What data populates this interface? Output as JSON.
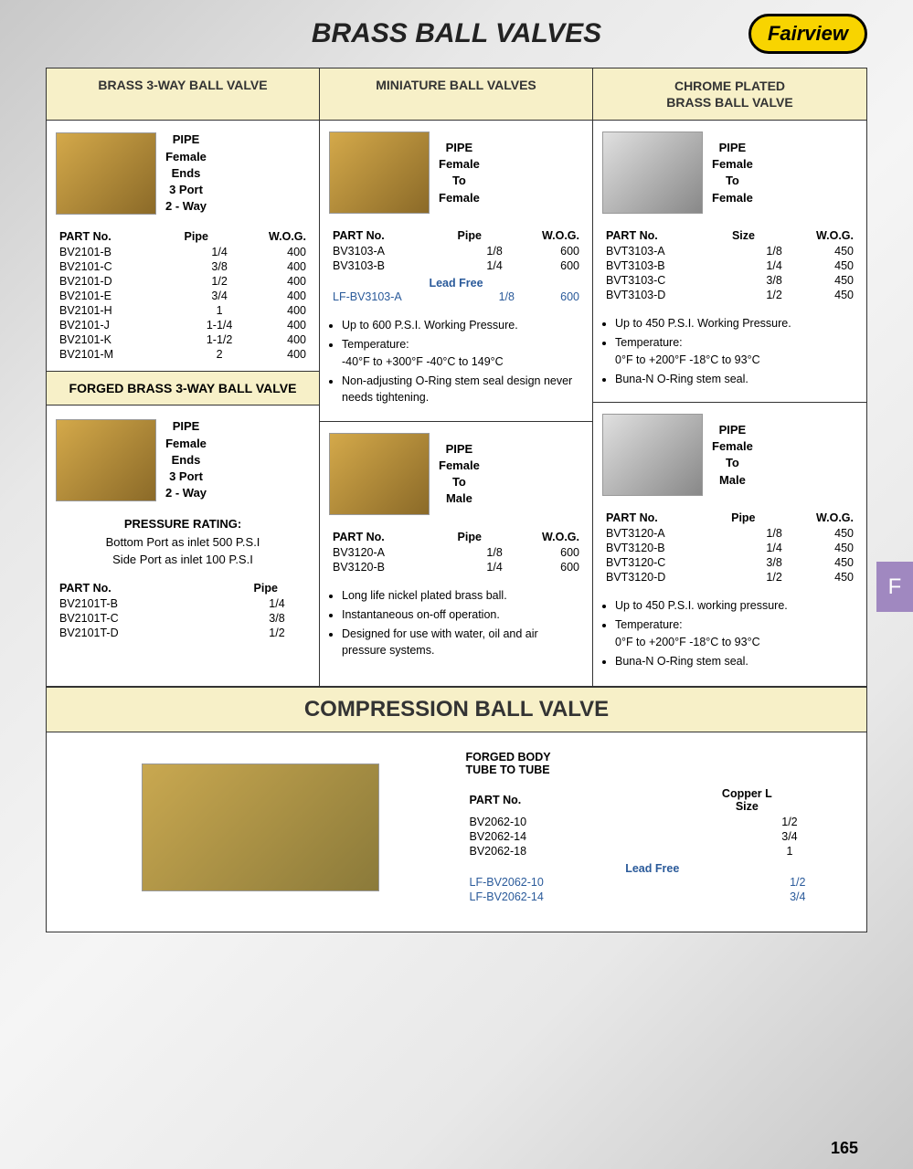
{
  "page": {
    "title": "BRASS BALL VALVES",
    "logo": "Fairview",
    "number": "165",
    "tab": "F"
  },
  "colors": {
    "header_bg": "#f7f0c8",
    "leadfree": "#2a5a9a",
    "logo_bg": "#f8d400",
    "tab_bg": "#a088c0"
  },
  "col1": {
    "header": "BRASS 3-WAY BALL VALVE",
    "desc": "PIPE\nFemale\nEnds\n3 Port\n2 - Way",
    "table": {
      "headers": [
        "PART No.",
        "Pipe",
        "W.O.G."
      ],
      "rows": [
        [
          "BV2101-B",
          "1/4",
          "400"
        ],
        [
          "BV2101-C",
          "3/8",
          "400"
        ],
        [
          "BV2101-D",
          "1/2",
          "400"
        ],
        [
          "BV2101-E",
          "3/4",
          "400"
        ],
        [
          "BV2101-H",
          "1",
          "400"
        ],
        [
          "BV2101-J",
          "1-1/4",
          "400"
        ],
        [
          "BV2101-K",
          "1-1/2",
          "400"
        ],
        [
          "BV2101-M",
          "2",
          "400"
        ]
      ]
    },
    "sub_header": "FORGED BRASS 3-WAY BALL VALVE",
    "desc2": "PIPE\nFemale\nEnds\n3 Port\n2 - Way",
    "pressure": {
      "label": "PRESSURE RATING:",
      "line1": "Bottom Port as inlet 500 P.S.I",
      "line2": "Side Port as inlet 100 P.S.I"
    },
    "table2": {
      "headers": [
        "PART No.",
        "Pipe"
      ],
      "rows": [
        [
          "BV2101T-B",
          "1/4"
        ],
        [
          "BV2101T-C",
          "3/8"
        ],
        [
          "BV2101T-D",
          "1/2"
        ]
      ]
    }
  },
  "col2": {
    "header": "MINIATURE BALL VALVES",
    "desc": "PIPE\nFemale\nTo\nFemale",
    "table": {
      "headers": [
        "PART No.",
        "Pipe",
        "W.O.G."
      ],
      "rows": [
        [
          "BV3103-A",
          "1/8",
          "600"
        ],
        [
          "BV3103-B",
          "1/4",
          "600"
        ]
      ],
      "leadfree_label": "Lead Free",
      "leadfree_rows": [
        [
          "LF-BV3103-A",
          "1/8",
          "600"
        ]
      ]
    },
    "bullets": [
      "Up to 600 P.S.I. Working Pressure.",
      "Temperature:",
      "-40°F to +300°F    -40°C to 149°C",
      "Non-adjusting O-Ring stem seal design never needs tightening."
    ],
    "desc2": "PIPE\nFemale\nTo\nMale",
    "table2": {
      "headers": [
        "PART No.",
        "Pipe",
        "W.O.G."
      ],
      "rows": [
        [
          "BV3120-A",
          "1/8",
          "600"
        ],
        [
          "BV3120-B",
          "1/4",
          "600"
        ]
      ]
    },
    "bullets2": [
      "Long life nickel plated brass ball.",
      "Instantaneous on-off operation.",
      "Designed for use with water, oil and air pressure systems."
    ]
  },
  "col3": {
    "header": "CHROME PLATED\nBRASS BALL VALVE",
    "desc": "PIPE\nFemale\nTo\nFemale",
    "table": {
      "headers": [
        "PART No.",
        "Size",
        "W.O.G."
      ],
      "rows": [
        [
          "BVT3103-A",
          "1/8",
          "450"
        ],
        [
          "BVT3103-B",
          "1/4",
          "450"
        ],
        [
          "BVT3103-C",
          "3/8",
          "450"
        ],
        [
          "BVT3103-D",
          "1/2",
          "450"
        ]
      ]
    },
    "bullets": [
      "Up to 450 P.S.I. Working Pressure.",
      "Temperature:",
      "0°F to +200°F    -18°C to 93°C",
      "Buna-N O-Ring stem seal."
    ],
    "desc2": "PIPE\nFemale\nTo\nMale",
    "table2": {
      "headers": [
        "PART No.",
        "Pipe",
        "W.O.G."
      ],
      "rows": [
        [
          "BVT3120-A",
          "1/8",
          "450"
        ],
        [
          "BVT3120-B",
          "1/4",
          "450"
        ],
        [
          "BVT3120-C",
          "3/8",
          "450"
        ],
        [
          "BVT3120-D",
          "1/2",
          "450"
        ]
      ]
    },
    "bullets2": [
      "Up to 450 P.S.I. working pressure.",
      "Temperature:",
      "0°F to +200°F    -18°C to 93°C",
      "Buna-N O-Ring stem seal."
    ]
  },
  "compression": {
    "header": "COMPRESSION BALL VALVE",
    "heading": "FORGED BODY\nTUBE TO TUBE",
    "table": {
      "headers": [
        "PART No.",
        "Copper L\nSize"
      ],
      "rows": [
        [
          "BV2062-10",
          "1/2"
        ],
        [
          "BV2062-14",
          "3/4"
        ],
        [
          "BV2062-18",
          "1"
        ]
      ],
      "leadfree_label": "Lead Free",
      "leadfree_rows": [
        [
          "LF-BV2062-10",
          "1/2"
        ],
        [
          "LF-BV2062-14",
          "3/4"
        ]
      ]
    }
  }
}
